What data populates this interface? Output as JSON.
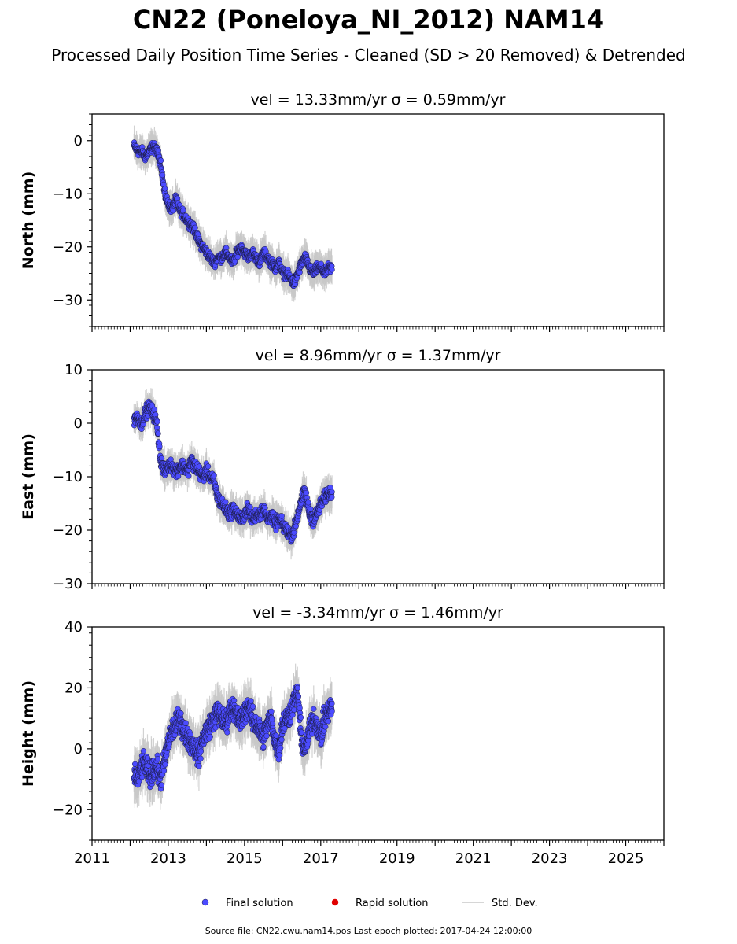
{
  "title": "CN22 (Poneloya_NI_2012) NAM14",
  "subtitle": "Processed Daily Position Time Series - Cleaned (SD > 20 Removed) & Detrended",
  "footer": "Source file: CN22.cwu.nam14.pos  Last epoch plotted: 2017-04-24 12:00:00",
  "colors": {
    "final": "#4b4bff",
    "rapid": "#e00000",
    "stddev": "#c8c8c8",
    "edge": "#1a1a40"
  },
  "legend": [
    {
      "label": "Final solution",
      "kind": "dot",
      "color": "#4b4bff"
    },
    {
      "label": "Rapid solution",
      "kind": "dot",
      "color": "#e00000"
    },
    {
      "label": "Std. Dev.",
      "kind": "line",
      "color": "#c8c8c8"
    }
  ],
  "chart_data": [
    {
      "type": "scatter",
      "title": "vel = 13.33mm/yr   σ = 0.59mm/yr",
      "ylabel": "North (mm)",
      "xlim": [
        2011,
        2026
      ],
      "ylim": [
        -35,
        5
      ],
      "yticks": [
        0,
        -10,
        -20,
        -30
      ],
      "series": [
        {
          "name": "Final solution",
          "x": [
            2012.1,
            2012.2,
            2012.3,
            2012.4,
            2012.5,
            2012.6,
            2012.7,
            2012.8,
            2012.9,
            2013.0,
            2013.1,
            2013.2,
            2013.3,
            2013.4,
            2013.5,
            2013.6,
            2013.7,
            2013.8,
            2013.9,
            2014.0,
            2014.1,
            2014.2,
            2014.3,
            2014.4,
            2014.5,
            2014.6,
            2014.7,
            2014.8,
            2014.9,
            2015.0,
            2015.1,
            2015.2,
            2015.3,
            2015.4,
            2015.5,
            2015.6,
            2015.7,
            2015.8,
            2015.9,
            2016.0,
            2016.1,
            2016.2,
            2016.3,
            2016.4,
            2016.5,
            2016.6,
            2016.7,
            2016.8,
            2016.9,
            2017.0,
            2017.1,
            2017.2,
            2017.3
          ],
          "y": [
            -1,
            -2,
            -2,
            -3,
            -2,
            -1,
            -2,
            -4,
            -10,
            -12,
            -13,
            -11,
            -13,
            -14,
            -15,
            -16,
            -17,
            -19,
            -20,
            -21,
            -22,
            -23,
            -22,
            -22,
            -21,
            -22,
            -23,
            -21,
            -20,
            -21,
            -22,
            -21,
            -22,
            -23,
            -21,
            -22,
            -23,
            -24,
            -23,
            -25,
            -25,
            -26,
            -27,
            -25,
            -23,
            -22,
            -24,
            -25,
            -24,
            -24,
            -25,
            -24,
            -24
          ]
        }
      ]
    },
    {
      "type": "scatter",
      "title": "vel = 8.96mm/yr   σ = 1.37mm/yr",
      "ylabel": "East (mm)",
      "xlim": [
        2011,
        2026
      ],
      "ylim": [
        -30,
        10
      ],
      "yticks": [
        10,
        0,
        -10,
        -20,
        -30
      ],
      "series": [
        {
          "name": "Final solution",
          "x": [
            2012.1,
            2012.2,
            2012.3,
            2012.4,
            2012.5,
            2012.6,
            2012.7,
            2012.8,
            2012.9,
            2013.0,
            2013.1,
            2013.2,
            2013.3,
            2013.4,
            2013.5,
            2013.6,
            2013.7,
            2013.8,
            2013.9,
            2014.0,
            2014.1,
            2014.2,
            2014.3,
            2014.4,
            2014.5,
            2014.6,
            2014.7,
            2014.8,
            2014.9,
            2015.0,
            2015.1,
            2015.2,
            2015.3,
            2015.4,
            2015.5,
            2015.6,
            2015.7,
            2015.8,
            2015.9,
            2016.0,
            2016.1,
            2016.2,
            2016.3,
            2016.4,
            2016.5,
            2016.6,
            2016.7,
            2016.8,
            2016.9,
            2017.0,
            2017.1,
            2017.2,
            2017.3
          ],
          "y": [
            1,
            1,
            0,
            2,
            3,
            2,
            0,
            -7,
            -9,
            -8,
            -8,
            -9,
            -8,
            -8,
            -9,
            -7,
            -8,
            -9,
            -10,
            -9,
            -10,
            -11,
            -14,
            -15,
            -16,
            -17,
            -16,
            -17,
            -18,
            -17,
            -16,
            -18,
            -17,
            -17,
            -16,
            -18,
            -17,
            -19,
            -18,
            -19,
            -20,
            -21,
            -20,
            -17,
            -14,
            -13,
            -17,
            -18,
            -17,
            -15,
            -14,
            -13,
            -13
          ]
        }
      ]
    },
    {
      "type": "scatter",
      "title": "vel = -3.34mm/yr   σ = 1.46mm/yr",
      "ylabel": "Height (mm)",
      "xlim": [
        2011,
        2026
      ],
      "ylim": [
        -30,
        40
      ],
      "yticks": [
        40,
        20,
        0,
        -20
      ],
      "xticks": [
        "2011",
        "2013",
        "2015",
        "2017",
        "2019",
        "2021",
        "2023",
        "2025"
      ],
      "series": [
        {
          "name": "Final solution",
          "x": [
            2012.1,
            2012.2,
            2012.3,
            2012.4,
            2012.5,
            2012.6,
            2012.7,
            2012.8,
            2012.9,
            2013.0,
            2013.1,
            2013.2,
            2013.3,
            2013.4,
            2013.5,
            2013.6,
            2013.7,
            2013.8,
            2013.9,
            2014.0,
            2014.1,
            2014.2,
            2014.3,
            2014.4,
            2014.5,
            2014.6,
            2014.7,
            2014.8,
            2014.9,
            2015.0,
            2015.1,
            2015.2,
            2015.3,
            2015.4,
            2015.5,
            2015.6,
            2015.7,
            2015.8,
            2015.9,
            2016.0,
            2016.1,
            2016.2,
            2016.3,
            2016.4,
            2016.5,
            2016.6,
            2016.7,
            2016.8,
            2016.9,
            2017.0,
            2017.1,
            2017.2,
            2017.3
          ],
          "y": [
            -8,
            -10,
            -6,
            -5,
            -9,
            -7,
            -6,
            -10,
            -4,
            2,
            6,
            8,
            10,
            6,
            4,
            2,
            0,
            -2,
            3,
            6,
            8,
            10,
            12,
            10,
            8,
            12,
            14,
            10,
            9,
            12,
            14,
            10,
            8,
            6,
            4,
            8,
            10,
            2,
            0,
            8,
            10,
            12,
            16,
            18,
            2,
            0,
            6,
            10,
            8,
            4,
            10,
            12,
            14
          ]
        }
      ]
    }
  ]
}
